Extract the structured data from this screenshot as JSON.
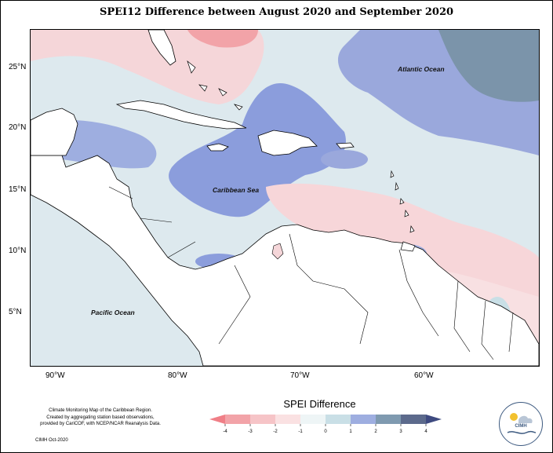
{
  "title": "SPEI12 Difference between August 2020 and September 2020",
  "lat_labels": [
    "25°N",
    "20°N",
    "15°N",
    "10°N",
    "5°N"
  ],
  "lon_labels": [
    "90°W",
    "80°W",
    "70°W",
    "60°W"
  ],
  "places": {
    "atlantic": "Atlantic Ocean",
    "caribbean": "Caribbean Sea",
    "pacific": "Pacific Ocean"
  },
  "legend": {
    "title": "SPEI Difference",
    "ticks": [
      "-4",
      "-3",
      "-2",
      "-1",
      "0",
      "1",
      "2",
      "3",
      "4"
    ],
    "colors": [
      "#f2a3a8",
      "#f6c4c7",
      "#fae1e2",
      "#eef5f6",
      "#c9dfe6",
      "#9eaee0",
      "#7f9ab0",
      "#5c6a8c"
    ],
    "low_arrow_color": "#f07f87",
    "high_arrow_color": "#3e4a80"
  },
  "credit": {
    "line1": "Climate Monitoring Map of the Caribbean Region.",
    "line2": "Created by aggregating station based observations,",
    "line3": "provided by CariCOF, with NCEP/NCAR Reanalysis Data.",
    "line4": "CIMH Oct-2020"
  },
  "logo_text": "CIMH"
}
